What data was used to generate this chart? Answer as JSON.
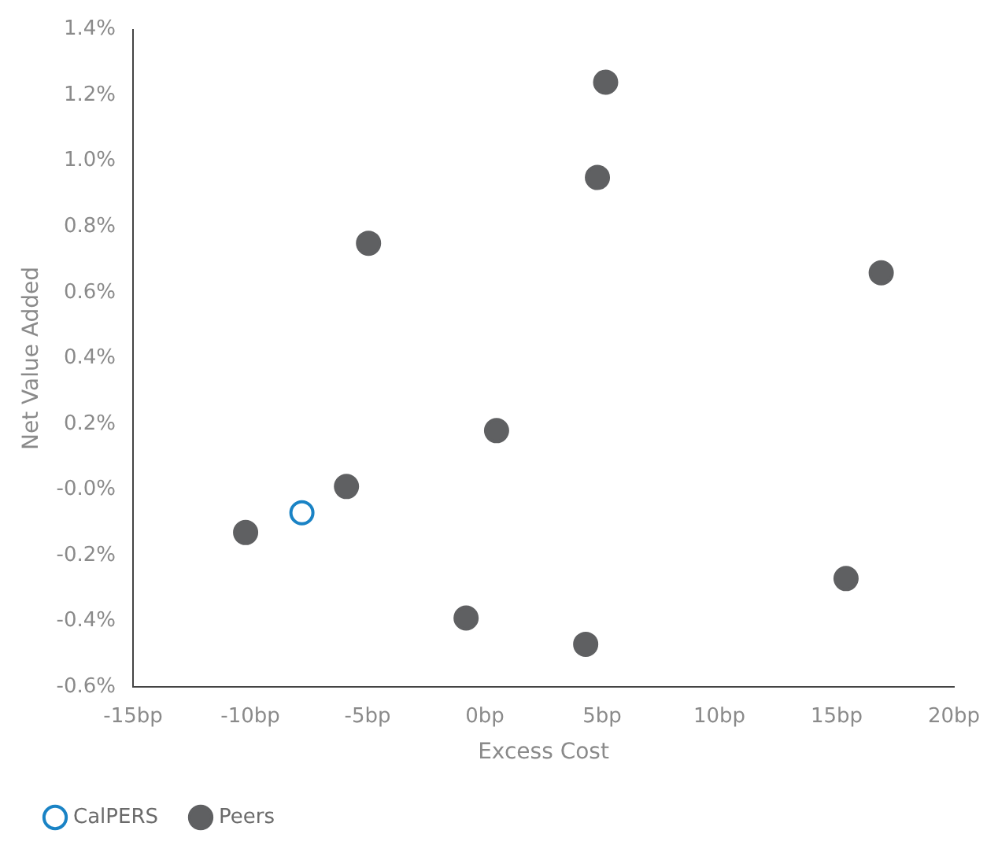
{
  "chart_data": {
    "type": "scatter",
    "xlabel": "Excess Cost",
    "ylabel": "Net Value Added",
    "series": [
      {
        "name": "CalPERS",
        "color": "#1a83c5",
        "x": [
          -7.8
        ],
        "values": [
          -0.07
        ]
      },
      {
        "name": "Peers",
        "color": "#5f6062",
        "x": [
          5.15,
          4.8,
          -4.96,
          16.9,
          0.5,
          -5.9,
          -10.2,
          15.4,
          -0.8,
          4.3
        ],
        "values": [
          1.24,
          0.95,
          0.75,
          0.66,
          0.18,
          0.01,
          -0.13,
          -0.27,
          -0.39,
          -0.47
        ]
      }
    ],
    "xlim": [
      -15,
      20
    ],
    "xticks": [
      {
        "value": -15,
        "label": "-15bp"
      },
      {
        "value": -10,
        "label": "-10bp"
      },
      {
        "value": -5,
        "label": "-5bp"
      },
      {
        "value": 0,
        "label": "0bp"
      },
      {
        "value": 5,
        "label": "5bp"
      },
      {
        "value": 10,
        "label": "10bp"
      },
      {
        "value": 15,
        "label": "15bp"
      },
      {
        "value": 20,
        "label": "20bp"
      }
    ],
    "ylim": [
      -0.6,
      1.4
    ],
    "yticks": [
      {
        "value": -0.6,
        "label": "-0.6%"
      },
      {
        "value": -0.4,
        "label": "-0.4%"
      },
      {
        "value": -0.2,
        "label": "-0.2%"
      },
      {
        "value": 0,
        "label": "-0.0%"
      },
      {
        "value": 0.2,
        "label": "0.2%"
      },
      {
        "value": 0.4,
        "label": "0.4%"
      },
      {
        "value": 0.6,
        "label": "0.6%"
      },
      {
        "value": 0.8,
        "label": "0.8%"
      },
      {
        "value": 1.0,
        "label": "1.0%"
      },
      {
        "value": 1.2,
        "label": "1.2%"
      },
      {
        "value": 1.4,
        "label": "1.4%"
      }
    ],
    "grid": false,
    "legend": "bottom left",
    "marker": "circle"
  }
}
